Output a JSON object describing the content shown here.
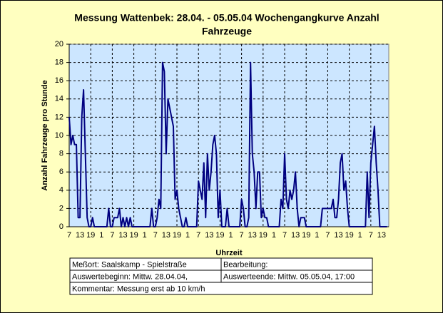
{
  "chart_data": {
    "type": "line",
    "title": [
      "Messung Wattenbek: 28.04. -  05.05.04 Wochengangkurve Anzahl",
      "Fahrzeuge"
    ],
    "xlabel": "Uhrzeit",
    "ylabel": "Anzahl Fahrzeuge pro Stunde",
    "categories": [
      "7",
      null,
      null,
      null,
      null,
      null,
      "13",
      null,
      null,
      null,
      null,
      null,
      "19",
      null,
      null,
      null,
      null,
      null,
      "1",
      null,
      null,
      null,
      null,
      null,
      "7",
      null,
      null,
      null,
      null,
      null,
      "13",
      null,
      null,
      null,
      null,
      null,
      "19",
      null,
      null,
      null,
      null,
      null,
      "1",
      null,
      null,
      null,
      null,
      null,
      "7",
      null,
      null,
      null,
      null,
      null,
      "13",
      null,
      null,
      null,
      null,
      null,
      "19",
      null,
      null,
      null,
      null,
      null,
      "1",
      null,
      null,
      null,
      null,
      null,
      "7",
      null,
      null,
      null,
      null,
      null,
      "13",
      null,
      null,
      null,
      null,
      null,
      "19",
      null,
      null,
      null,
      null,
      null,
      "1",
      null,
      null,
      null,
      null,
      null,
      "7",
      null,
      null,
      null,
      null,
      null,
      "13",
      null,
      null,
      null,
      null,
      null,
      "19",
      null,
      null,
      null,
      null,
      null,
      "1",
      null,
      null,
      null,
      null,
      null,
      "7",
      null,
      null,
      null,
      null,
      null,
      "13",
      null,
      null,
      null,
      null,
      null,
      "19",
      null,
      null,
      null,
      null,
      null,
      "1",
      null,
      null,
      null,
      null,
      null,
      "7",
      null,
      null,
      null,
      null,
      null,
      "13",
      null,
      null,
      null,
      null,
      null,
      "19",
      null,
      null,
      null,
      null,
      null,
      "1",
      null,
      null,
      null,
      null,
      null,
      "7",
      null,
      null,
      null,
      null,
      null,
      "13",
      null,
      null,
      null
    ],
    "series": [
      {
        "name": "Anzahl Fahrzeuge",
        "color": "#000080",
        "values": [
          12,
          9,
          10,
          9,
          9,
          1,
          1,
          12,
          15,
          8,
          1,
          0,
          0,
          1,
          0,
          0,
          0,
          0,
          0,
          0,
          0,
          0,
          2,
          0,
          0,
          1,
          1,
          1,
          2,
          0,
          1,
          0,
          1,
          0,
          1,
          0,
          0,
          0,
          0,
          0,
          0,
          0,
          0,
          0,
          0,
          0,
          2,
          0,
          0,
          1,
          3,
          2,
          18,
          17,
          8,
          14,
          13,
          12,
          11,
          3,
          4,
          2,
          1,
          0,
          0,
          1,
          0,
          0,
          0,
          0,
          0,
          0,
          5,
          4,
          3,
          7,
          1,
          8,
          4,
          6,
          9,
          10,
          8,
          1,
          4,
          0,
          0,
          0,
          2,
          0,
          0,
          0,
          0,
          0,
          0,
          0,
          3,
          2,
          0,
          0,
          1,
          18,
          8,
          6,
          2,
          6,
          6,
          1,
          2,
          1,
          1,
          0,
          0,
          0,
          0,
          0,
          0,
          0,
          3,
          2,
          8,
          3,
          2,
          4,
          3,
          4,
          6,
          2,
          0,
          1,
          1,
          1,
          0,
          0,
          0,
          0,
          0,
          0,
          0,
          0,
          0,
          2,
          2,
          2,
          2,
          2,
          2,
          3,
          1,
          1,
          3,
          7,
          8,
          4,
          5,
          2,
          0,
          0,
          0,
          0,
          0,
          0,
          0,
          0,
          0,
          0,
          6,
          1,
          7,
          9,
          11,
          7,
          4,
          0,
          0,
          0,
          0,
          0
        ]
      }
    ],
    "ylim": [
      0,
      20
    ],
    "yticks": [
      0,
      2,
      4,
      6,
      8,
      10,
      12,
      14,
      16,
      18,
      20
    ],
    "grid": true,
    "x_grid_interval": 12,
    "info_table": {
      "rows": [
        [
          "Meßort:  Saalskamp - Spielstraße",
          "Bearbeitung:"
        ],
        [
          "Auswertebeginn:  Mittw. 28.04.04,",
          "Auswerteende:  Mittw. 05.05.04, 17:00"
        ],
        [
          "Kommentar:  Messung erst ab 10 km/h"
        ]
      ]
    }
  }
}
